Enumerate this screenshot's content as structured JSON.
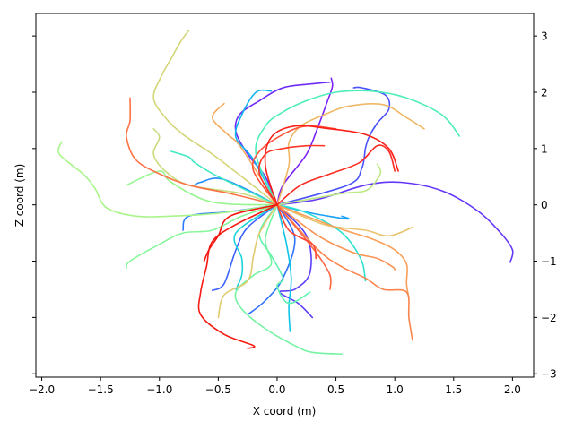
{
  "chart_data": {
    "type": "line",
    "title": "",
    "xlabel": "X coord (m)",
    "ylabel": "Z coord (m)",
    "xlim": [
      -2.05,
      2.18
    ],
    "ylim": [
      -3.06,
      3.4
    ],
    "xticks": [
      -2.0,
      -1.5,
      -1.0,
      -0.5,
      0.0,
      0.5,
      1.0,
      1.5,
      2.0
    ],
    "xtick_labels": [
      "−2.0",
      "−1.5",
      "−1.0",
      "−0.5",
      "0.0",
      "0.5",
      "1.0",
      "1.5",
      "2.0"
    ],
    "yticks_right": [
      -3,
      -2,
      -1,
      0,
      1,
      2,
      3
    ],
    "ytick_labels_right": [
      "−3",
      "−2",
      "−1",
      "0",
      "1",
      "2",
      "3"
    ],
    "yticks_left": [
      -3,
      -2,
      -1,
      0,
      1,
      2,
      3
    ],
    "grid": false,
    "legend": "none",
    "origin": [
      0,
      0
    ],
    "series": [
      {
        "color": "#7a22f5",
        "points": [
          [
            0.0,
            0.0
          ],
          [
            0.05,
            0.35
          ],
          [
            0.25,
            0.9
          ],
          [
            0.35,
            1.4
          ],
          [
            0.42,
            1.8
          ],
          [
            0.47,
            2.1
          ],
          [
            0.46,
            2.25
          ]
        ]
      },
      {
        "color": "#6e2bf7",
        "points": [
          [
            0.0,
            0.0
          ],
          [
            -0.1,
            0.5
          ],
          [
            -0.25,
            0.9
          ],
          [
            -0.35,
            1.3
          ],
          [
            -0.32,
            1.6
          ],
          [
            -0.15,
            1.85
          ],
          [
            0.05,
            2.08
          ],
          [
            0.3,
            2.15
          ],
          [
            0.45,
            2.18
          ]
        ]
      },
      {
        "color": "#6436f8",
        "points": [
          [
            0.0,
            0.0
          ],
          [
            0.35,
            0.1
          ],
          [
            0.75,
            0.35
          ],
          [
            1.05,
            0.4
          ],
          [
            1.4,
            0.25
          ],
          [
            1.7,
            -0.1
          ],
          [
            1.9,
            -0.5
          ],
          [
            2.0,
            -0.8
          ],
          [
            1.98,
            -1.02
          ]
        ]
      },
      {
        "color": "#5a3ff9",
        "points": [
          [
            0.0,
            0.0
          ],
          [
            0.25,
            -0.55
          ],
          [
            0.28,
            -1.2
          ],
          [
            0.15,
            -1.5
          ],
          [
            0.02,
            -1.55
          ],
          [
            0.18,
            -1.75
          ],
          [
            0.3,
            -2.0
          ]
        ]
      },
      {
        "color": "#4a52fb",
        "points": [
          [
            0.0,
            0.0
          ],
          [
            0.6,
            0.35
          ],
          [
            0.72,
            0.65
          ],
          [
            0.75,
            1.0
          ],
          [
            0.78,
            1.2
          ],
          [
            0.85,
            1.45
          ],
          [
            0.95,
            1.7
          ],
          [
            0.92,
            1.95
          ],
          [
            0.72,
            2.08
          ],
          [
            0.65,
            2.08
          ]
        ]
      },
      {
        "color": "#3c62fc",
        "points": [
          [
            0.0,
            0.0
          ],
          [
            -0.25,
            -0.4
          ],
          [
            -0.35,
            -0.8
          ],
          [
            -0.45,
            -1.4
          ],
          [
            -0.55,
            -1.52
          ]
        ]
      },
      {
        "color": "#2f72fd",
        "points": [
          [
            0.0,
            0.0
          ],
          [
            0.15,
            -0.6
          ],
          [
            0.05,
            -1.3
          ],
          [
            -0.1,
            -1.7
          ],
          [
            -0.25,
            -1.95
          ]
        ]
      },
      {
        "color": "#2a78fd",
        "points": [
          [
            0.0,
            0.0
          ],
          [
            -0.4,
            -0.12
          ],
          [
            -0.75,
            -0.2
          ],
          [
            -0.8,
            -0.45
          ]
        ]
      },
      {
        "color": "#1f8afe",
        "points": [
          [
            0.0,
            0.0
          ],
          [
            -0.45,
            0.45
          ],
          [
            -0.65,
            0.4
          ],
          [
            -0.7,
            0.35
          ]
        ]
      },
      {
        "color": "#18a0f8",
        "points": [
          [
            0.0,
            0.0
          ],
          [
            0.3,
            -0.15
          ],
          [
            0.6,
            -0.25
          ],
          [
            0.55,
            -0.2
          ]
        ]
      },
      {
        "color": "#12b4f0",
        "points": [
          [
            0.0,
            0.0
          ],
          [
            -0.2,
            0.8
          ],
          [
            -0.35,
            1.2
          ],
          [
            -0.3,
            1.6
          ],
          [
            -0.18,
            2.0
          ],
          [
            -0.05,
            2.02
          ]
        ]
      },
      {
        "color": "#0fc4e6",
        "points": [
          [
            0.0,
            0.0
          ],
          [
            0.08,
            -0.7
          ],
          [
            0.12,
            -1.3
          ],
          [
            0.1,
            -1.8
          ],
          [
            0.11,
            -2.25
          ]
        ]
      },
      {
        "color": "#1dd3dc",
        "points": [
          [
            0.0,
            0.0
          ],
          [
            -0.35,
            -0.5
          ],
          [
            -0.3,
            -0.95
          ],
          [
            -0.3,
            -1.25
          ],
          [
            -0.35,
            -1.5
          ]
        ]
      },
      {
        "color": "#2be0cf",
        "points": [
          [
            0.0,
            0.0
          ],
          [
            0.2,
            -0.1
          ],
          [
            0.45,
            -0.35
          ],
          [
            0.6,
            -0.6
          ],
          [
            0.72,
            -1.0
          ],
          [
            0.75,
            -1.35
          ]
        ]
      },
      {
        "color": "#3fe8c3",
        "points": [
          [
            0.0,
            0.0
          ],
          [
            -0.5,
            0.5
          ],
          [
            -0.7,
            0.75
          ],
          [
            -0.75,
            0.85
          ],
          [
            -0.9,
            0.95
          ]
        ]
      },
      {
        "color": "#4cedbb",
        "points": [
          [
            0.0,
            0.0
          ],
          [
            -0.18,
            0.9
          ],
          [
            -0.1,
            1.4
          ],
          [
            0.05,
            1.65
          ],
          [
            0.25,
            1.85
          ],
          [
            0.5,
            2.0
          ],
          [
            0.8,
            2.02
          ],
          [
            1.1,
            1.9
          ],
          [
            1.4,
            1.6
          ],
          [
            1.55,
            1.22
          ]
        ]
      },
      {
        "color": "#5ff2b0",
        "points": [
          [
            0.0,
            0.0
          ],
          [
            -0.15,
            -0.5
          ],
          [
            -0.05,
            -0.9
          ],
          [
            0.05,
            -1.3
          ],
          [
            0.0,
            -1.45
          ],
          [
            0.1,
            -1.75
          ],
          [
            0.28,
            -1.55
          ]
        ]
      },
      {
        "color": "#74f4a3",
        "points": [
          [
            0.0,
            0.0
          ],
          [
            -0.1,
            -0.6
          ],
          [
            -0.05,
            -1.05
          ],
          [
            -0.2,
            -1.25
          ],
          [
            -0.35,
            -1.55
          ],
          [
            -0.3,
            -1.85
          ],
          [
            -0.1,
            -2.2
          ],
          [
            0.15,
            -2.5
          ],
          [
            0.3,
            -2.62
          ],
          [
            0.55,
            -2.65
          ]
        ]
      },
      {
        "color": "#86f69a",
        "points": [
          [
            0.0,
            0.0
          ],
          [
            -0.3,
            -0.2
          ],
          [
            -0.55,
            -0.45
          ],
          [
            -0.8,
            -0.5
          ],
          [
            -1.0,
            -0.7
          ],
          [
            -1.25,
            -1.0
          ],
          [
            -1.28,
            -1.12
          ]
        ]
      },
      {
        "color": "#97f68f",
        "points": [
          [
            0.0,
            0.0
          ],
          [
            -0.55,
            0.05
          ],
          [
            -0.9,
            0.4
          ],
          [
            -1.0,
            0.6
          ],
          [
            -1.28,
            0.35
          ]
        ]
      },
      {
        "color": "#a8f58a",
        "points": [
          [
            0.0,
            0.0
          ],
          [
            -0.5,
            -0.15
          ],
          [
            -0.9,
            -0.2
          ],
          [
            -1.2,
            -0.2
          ],
          [
            -1.45,
            -0.05
          ],
          [
            -1.55,
            0.3
          ],
          [
            -1.65,
            0.55
          ],
          [
            -1.85,
            0.9
          ],
          [
            -1.83,
            1.12
          ]
        ]
      },
      {
        "color": "#bde884",
        "points": [
          [
            0.0,
            0.0
          ],
          [
            0.55,
            0.2
          ],
          [
            0.75,
            0.25
          ],
          [
            0.85,
            0.45
          ],
          [
            0.88,
            0.6
          ],
          [
            0.85,
            0.72
          ]
        ]
      },
      {
        "color": "#c8dc7e",
        "points": [
          [
            0.0,
            0.0
          ],
          [
            -0.3,
            0.2
          ],
          [
            -0.75,
            0.35
          ],
          [
            -0.95,
            0.6
          ],
          [
            -1.05,
            0.9
          ],
          [
            -1.0,
            1.2
          ],
          [
            -1.05,
            1.35
          ]
        ]
      },
      {
        "color": "#d4d577",
        "points": [
          [
            0.0,
            0.0
          ],
          [
            -0.3,
            0.5
          ],
          [
            -0.55,
            0.9
          ],
          [
            -0.8,
            1.25
          ],
          [
            -0.95,
            1.55
          ],
          [
            -1.05,
            1.9
          ],
          [
            -0.98,
            2.3
          ],
          [
            -0.9,
            2.6
          ],
          [
            -0.82,
            2.9
          ],
          [
            -0.75,
            3.1
          ]
        ]
      },
      {
        "color": "#e0cb70",
        "points": [
          [
            0.0,
            0.0
          ],
          [
            -0.15,
            -0.5
          ],
          [
            -0.2,
            -0.9
          ],
          [
            -0.25,
            -1.35
          ],
          [
            -0.45,
            -1.6
          ],
          [
            -0.5,
            -2.0
          ]
        ]
      },
      {
        "color": "#e8c36c",
        "points": [
          [
            0.0,
            0.0
          ],
          [
            0.4,
            -0.35
          ],
          [
            0.75,
            -0.45
          ],
          [
            0.95,
            -0.55
          ],
          [
            1.15,
            -0.4
          ]
        ]
      },
      {
        "color": "#efb866",
        "points": [
          [
            0.0,
            0.0
          ],
          [
            0.1,
            0.7
          ],
          [
            0.1,
            1.1
          ],
          [
            0.2,
            1.4
          ],
          [
            0.4,
            1.6
          ],
          [
            0.6,
            1.75
          ],
          [
            0.9,
            1.78
          ],
          [
            1.1,
            1.55
          ],
          [
            1.25,
            1.35
          ]
        ]
      },
      {
        "color": "#f5ab60",
        "points": [
          [
            0.0,
            0.0
          ],
          [
            -0.3,
            1.0
          ],
          [
            -0.42,
            1.25
          ],
          [
            -0.55,
            1.55
          ],
          [
            -0.45,
            1.8
          ]
        ]
      },
      {
        "color": "#f8a05a",
        "points": [
          [
            0.0,
            0.0
          ],
          [
            0.5,
            -0.4
          ],
          [
            0.8,
            -0.6
          ],
          [
            1.0,
            -0.8
          ],
          [
            1.1,
            -1.05
          ],
          [
            1.1,
            -1.4
          ],
          [
            1.12,
            -1.65
          ]
        ]
      },
      {
        "color": "#fb9354",
        "points": [
          [
            0.0,
            0.0
          ],
          [
            0.35,
            -0.55
          ],
          [
            0.65,
            -0.85
          ],
          [
            0.85,
            -0.95
          ],
          [
            0.98,
            -1.1
          ],
          [
            1.0,
            -1.15
          ]
        ]
      },
      {
        "color": "#fd854d",
        "points": [
          [
            0.0,
            0.0
          ],
          [
            0.35,
            -0.8
          ],
          [
            0.55,
            -1.1
          ],
          [
            0.75,
            -1.3
          ],
          [
            0.9,
            -1.5
          ],
          [
            1.1,
            -1.55
          ],
          [
            1.12,
            -2.0
          ],
          [
            1.15,
            -2.4
          ]
        ]
      },
      {
        "color": "#fe7346",
        "points": [
          [
            0.0,
            0.0
          ],
          [
            -0.4,
            0.2
          ],
          [
            -0.75,
            0.35
          ],
          [
            -1.0,
            0.55
          ],
          [
            -1.2,
            0.8
          ],
          [
            -1.28,
            1.2
          ],
          [
            -1.25,
            1.5
          ],
          [
            -1.25,
            1.9
          ]
        ]
      },
      {
        "color": "#ff6440",
        "points": [
          [
            0.0,
            0.0
          ],
          [
            0.2,
            -0.5
          ],
          [
            0.35,
            -0.9
          ],
          [
            0.45,
            -1.25
          ],
          [
            0.45,
            -1.5
          ]
        ]
      },
      {
        "color": "#ff5539",
        "points": [
          [
            0.0,
            0.0
          ],
          [
            -0.2,
            0.6
          ],
          [
            -0.15,
            0.95
          ],
          [
            0.05,
            1.25
          ],
          [
            0.25,
            1.4
          ],
          [
            0.5,
            1.35
          ]
        ]
      },
      {
        "color": "#ff4531",
        "points": [
          [
            0.0,
            0.0
          ],
          [
            0.1,
            -0.45
          ],
          [
            0.3,
            -0.7
          ],
          [
            0.33,
            -0.95
          ]
        ]
      },
      {
        "color": "#fe3628",
        "points": [
          [
            0.0,
            0.0
          ],
          [
            -0.15,
            0.55
          ],
          [
            -0.1,
            0.9
          ],
          [
            0.05,
            1.0
          ],
          [
            0.25,
            1.05
          ],
          [
            0.4,
            1.05
          ]
        ]
      },
      {
        "color": "#fc2a20",
        "points": [
          [
            0.0,
            0.0
          ],
          [
            0.2,
            0.35
          ],
          [
            0.45,
            0.55
          ],
          [
            0.7,
            0.75
          ],
          [
            0.85,
            1.05
          ],
          [
            0.95,
            0.95
          ],
          [
            1.0,
            0.6
          ]
        ]
      },
      {
        "color": "#fa2018",
        "points": [
          [
            0.0,
            0.0
          ],
          [
            -0.1,
            0.7
          ],
          [
            -0.05,
            1.2
          ],
          [
            0.15,
            1.4
          ],
          [
            0.45,
            1.35
          ],
          [
            0.75,
            1.25
          ],
          [
            0.95,
            1.0
          ],
          [
            1.03,
            0.6
          ]
        ]
      },
      {
        "color": "#f61a12",
        "points": [
          [
            0.0,
            0.0
          ],
          [
            -0.35,
            -0.35
          ],
          [
            -0.55,
            -0.65
          ],
          [
            -0.6,
            -1.1
          ],
          [
            -0.65,
            -1.55
          ],
          [
            -0.65,
            -1.95
          ],
          [
            -0.45,
            -2.3
          ],
          [
            -0.2,
            -2.5
          ],
          [
            -0.25,
            -2.55
          ]
        ]
      },
      {
        "color": "#f2140d",
        "points": [
          [
            0.0,
            0.0
          ],
          [
            -0.4,
            -0.2
          ],
          [
            -0.5,
            -0.55
          ],
          [
            -0.58,
            -0.8
          ],
          [
            -0.62,
            -1.0
          ]
        ]
      }
    ]
  }
}
